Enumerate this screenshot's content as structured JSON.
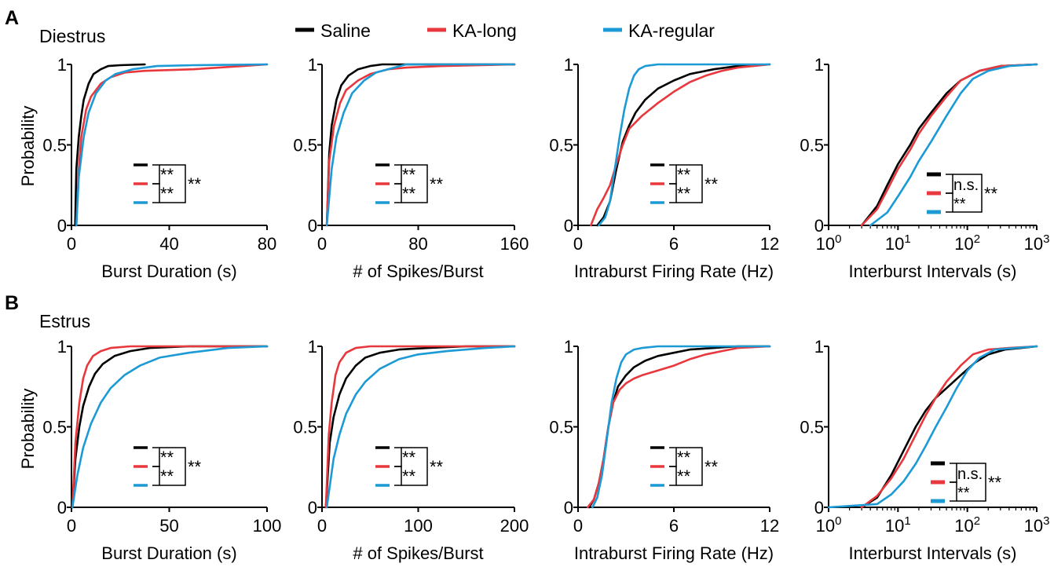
{
  "panels": [
    {
      "letter": "A",
      "title": "Diestrus"
    },
    {
      "letter": "B",
      "title": "Estrus"
    }
  ],
  "legend": [
    {
      "name": "Saline",
      "color": "#000000"
    },
    {
      "name": "KA-long",
      "color": "#e8383d"
    },
    {
      "name": "KA-regular",
      "color": "#1b9ad6"
    }
  ],
  "ylabel": "Probability",
  "y_ticks": [
    "0",
    "0.5",
    "1"
  ],
  "chart_data": [
    {
      "type": "line",
      "row": "Diestrus",
      "xlabel": "Burst Duration (s)",
      "xscale": "linear",
      "xlim": [
        0,
        80
      ],
      "xticks": [
        "0",
        "40",
        "80"
      ],
      "ylim": [
        0,
        1
      ],
      "series": [
        {
          "name": "Saline",
          "x": [
            1.5,
            2,
            3,
            4,
            5,
            7,
            9,
            12,
            15,
            20,
            30
          ],
          "y": [
            0,
            0.35,
            0.55,
            0.68,
            0.78,
            0.88,
            0.94,
            0.97,
            0.99,
            0.995,
            1
          ]
        },
        {
          "name": "KA-long",
          "x": [
            2,
            3,
            4,
            6,
            8,
            12,
            16,
            22,
            30,
            50,
            70,
            80
          ],
          "y": [
            0,
            0.35,
            0.55,
            0.72,
            0.8,
            0.88,
            0.92,
            0.95,
            0.96,
            0.97,
            0.99,
            1
          ]
        },
        {
          "name": "KA-regular",
          "x": [
            2,
            3,
            5,
            7,
            10,
            14,
            18,
            25,
            35,
            50,
            80
          ],
          "y": [
            0,
            0.3,
            0.55,
            0.7,
            0.82,
            0.9,
            0.94,
            0.97,
            0.99,
            0.995,
            1
          ]
        }
      ],
      "annotation": {
        "pairs": [
          "**",
          "**"
        ],
        "outer": "**"
      }
    },
    {
      "type": "line",
      "row": "Diestrus",
      "xlabel": "# of Spikes/Burst",
      "xscale": "linear",
      "xlim": [
        0,
        160
      ],
      "xticks": [
        "0",
        "80",
        "160"
      ],
      "ylim": [
        0,
        1
      ],
      "series": [
        {
          "name": "Saline",
          "x": [
            4,
            6,
            8,
            12,
            16,
            22,
            30,
            40,
            50,
            160
          ],
          "y": [
            0,
            0.45,
            0.62,
            0.78,
            0.87,
            0.93,
            0.97,
            0.99,
            1,
            1
          ]
        },
        {
          "name": "KA-long",
          "x": [
            4,
            6,
            10,
            15,
            20,
            30,
            40,
            55,
            70,
            100,
            160
          ],
          "y": [
            0,
            0.4,
            0.62,
            0.76,
            0.84,
            0.9,
            0.94,
            0.97,
            0.98,
            0.99,
            1
          ]
        },
        {
          "name": "KA-regular",
          "x": [
            4,
            8,
            12,
            18,
            25,
            35,
            45,
            60,
            70,
            160
          ],
          "y": [
            0,
            0.35,
            0.55,
            0.7,
            0.82,
            0.9,
            0.95,
            0.98,
            1,
            1
          ]
        }
      ],
      "annotation": {
        "pairs": [
          "**",
          "**"
        ],
        "outer": "**"
      }
    },
    {
      "type": "line",
      "row": "Diestrus",
      "xlabel": "Intraburst Firing Rate (Hz)",
      "xscale": "linear",
      "xlim": [
        0,
        12
      ],
      "xticks": [
        "0",
        "6",
        "12"
      ],
      "ylim": [
        0,
        1
      ],
      "series": [
        {
          "name": "Saline",
          "x": [
            1.2,
            1.6,
            2,
            2.4,
            2.8,
            3.2,
            3.6,
            4.2,
            5,
            6,
            7,
            8.5,
            10,
            12
          ],
          "y": [
            0,
            0.05,
            0.15,
            0.35,
            0.52,
            0.62,
            0.7,
            0.78,
            0.85,
            0.9,
            0.94,
            0.97,
            0.99,
            1
          ]
        },
        {
          "name": "KA-long",
          "x": [
            0.8,
            1.2,
            1.6,
            2,
            2.4,
            2.8,
            3.2,
            4,
            5,
            6,
            7,
            8,
            9,
            10,
            12
          ],
          "y": [
            0,
            0.1,
            0.17,
            0.25,
            0.38,
            0.5,
            0.6,
            0.68,
            0.76,
            0.83,
            0.89,
            0.93,
            0.96,
            0.98,
            1
          ]
        },
        {
          "name": "KA-regular",
          "x": [
            1.3,
            1.7,
            2,
            2.3,
            2.6,
            2.9,
            3.2,
            3.5,
            3.8,
            4.2,
            5,
            6,
            12
          ],
          "y": [
            0,
            0.05,
            0.15,
            0.35,
            0.55,
            0.72,
            0.85,
            0.93,
            0.97,
            0.99,
            1,
            1,
            1
          ]
        }
      ],
      "annotation": {
        "pairs": [
          "**",
          "**"
        ],
        "outer": "**"
      }
    },
    {
      "type": "line",
      "row": "Diestrus",
      "xlabel": "Interburst Intervals (s)",
      "xscale": "log",
      "xlim": [
        1,
        1000
      ],
      "xticks": [
        "1",
        "10",
        "100",
        "1000"
      ],
      "ylim": [
        0,
        1
      ],
      "series": [
        {
          "name": "Saline",
          "x": [
            3,
            5,
            7,
            10,
            15,
            20,
            30,
            50,
            80,
            150,
            300,
            1000
          ],
          "y": [
            0,
            0.12,
            0.25,
            0.38,
            0.5,
            0.6,
            0.7,
            0.82,
            0.9,
            0.96,
            0.99,
            1
          ]
        },
        {
          "name": "KA-long",
          "x": [
            3,
            5,
            7,
            10,
            15,
            20,
            30,
            50,
            80,
            150,
            300,
            1000
          ],
          "y": [
            0,
            0.1,
            0.22,
            0.35,
            0.47,
            0.57,
            0.68,
            0.8,
            0.9,
            0.96,
            0.99,
            1
          ]
        },
        {
          "name": "KA-regular",
          "x": [
            4,
            7,
            10,
            15,
            20,
            30,
            50,
            80,
            120,
            200,
            400,
            1000
          ],
          "y": [
            0,
            0.08,
            0.18,
            0.3,
            0.4,
            0.52,
            0.68,
            0.82,
            0.91,
            0.96,
            0.99,
            1
          ]
        }
      ],
      "annotation": {
        "pairs": [
          "n.s.",
          "**"
        ],
        "outer": "**"
      }
    },
    {
      "type": "line",
      "row": "Estrus",
      "xlabel": "Burst Duration (s)",
      "xscale": "linear",
      "xlim": [
        0,
        100
      ],
      "xticks": [
        "0",
        "50",
        "100"
      ],
      "ylim": [
        0,
        1
      ],
      "series": [
        {
          "name": "Saline",
          "x": [
            0.5,
            2,
            4,
            6,
            9,
            12,
            16,
            22,
            30,
            40,
            60,
            100
          ],
          "y": [
            0,
            0.3,
            0.5,
            0.63,
            0.75,
            0.83,
            0.89,
            0.94,
            0.97,
            0.99,
            1,
            1
          ]
        },
        {
          "name": "KA-long",
          "x": [
            0.5,
            2,
            4,
            6,
            8,
            11,
            15,
            20,
            30,
            100
          ],
          "y": [
            0,
            0.4,
            0.65,
            0.8,
            0.88,
            0.94,
            0.97,
            0.99,
            1,
            1
          ]
        },
        {
          "name": "KA-regular",
          "x": [
            0.5,
            3,
            6,
            10,
            15,
            20,
            27,
            35,
            45,
            60,
            80,
            100
          ],
          "y": [
            0,
            0.2,
            0.37,
            0.52,
            0.65,
            0.74,
            0.82,
            0.88,
            0.93,
            0.96,
            0.99,
            1
          ]
        }
      ],
      "annotation": {
        "pairs": [
          "**",
          "**"
        ],
        "outer": "**"
      }
    },
    {
      "type": "line",
      "row": "Estrus",
      "xlabel": "# of Spikes/Burst",
      "xscale": "linear",
      "xlim": [
        0,
        200
      ],
      "xticks": [
        "0",
        "100",
        "200"
      ],
      "ylim": [
        0,
        1
      ],
      "series": [
        {
          "name": "Saline",
          "x": [
            4,
            8,
            12,
            18,
            25,
            35,
            45,
            60,
            80,
            110,
            150,
            200
          ],
          "y": [
            0,
            0.4,
            0.56,
            0.7,
            0.8,
            0.88,
            0.93,
            0.96,
            0.98,
            0.99,
            1,
            1
          ]
        },
        {
          "name": "KA-long",
          "x": [
            4,
            7,
            10,
            14,
            18,
            25,
            35,
            50,
            200
          ],
          "y": [
            0,
            0.45,
            0.65,
            0.82,
            0.9,
            0.96,
            0.99,
            1,
            1
          ]
        },
        {
          "name": "KA-regular",
          "x": [
            5,
            12,
            18,
            25,
            35,
            45,
            60,
            80,
            100,
            130,
            170,
            200
          ],
          "y": [
            0,
            0.3,
            0.45,
            0.58,
            0.7,
            0.78,
            0.86,
            0.92,
            0.95,
            0.97,
            0.99,
            1
          ]
        }
      ],
      "annotation": {
        "pairs": [
          "**",
          "**"
        ],
        "outer": "**"
      }
    },
    {
      "type": "line",
      "row": "Estrus",
      "xlabel": "Intraburst Firing Rate (Hz)",
      "xscale": "linear",
      "xlim": [
        0,
        12
      ],
      "xticks": [
        "0",
        "6",
        "12"
      ],
      "ylim": [
        0,
        1
      ],
      "series": [
        {
          "name": "Saline",
          "x": [
            0.7,
            1,
            1.3,
            1.6,
            1.9,
            2.2,
            2.5,
            3,
            3.5,
            4.2,
            5,
            6,
            7,
            8.5,
            10,
            12
          ],
          "y": [
            0,
            0.05,
            0.15,
            0.3,
            0.5,
            0.65,
            0.75,
            0.82,
            0.87,
            0.91,
            0.94,
            0.96,
            0.98,
            0.99,
            1,
            1
          ]
        },
        {
          "name": "KA-long",
          "x": [
            0.6,
            1,
            1.3,
            1.6,
            1.9,
            2.2,
            2.6,
            3,
            3.5,
            4,
            5,
            6,
            7,
            8,
            9,
            10,
            12
          ],
          "y": [
            0,
            0.05,
            0.15,
            0.3,
            0.5,
            0.65,
            0.73,
            0.77,
            0.8,
            0.82,
            0.85,
            0.88,
            0.92,
            0.95,
            0.97,
            0.99,
            1
          ]
        },
        {
          "name": "KA-regular",
          "x": [
            0.9,
            1.2,
            1.5,
            1.8,
            2.1,
            2.4,
            2.7,
            3,
            3.5,
            4,
            5,
            12
          ],
          "y": [
            0,
            0.06,
            0.2,
            0.42,
            0.65,
            0.8,
            0.9,
            0.95,
            0.98,
            0.99,
            1,
            1
          ]
        }
      ],
      "annotation": {
        "pairs": [
          "**",
          "**"
        ],
        "outer": "**"
      }
    },
    {
      "type": "line",
      "row": "Estrus",
      "xlabel": "Interburst Intervals (s)",
      "xscale": "log",
      "xlim": [
        1,
        1000
      ],
      "xticks": [
        "1",
        "10",
        "100",
        "1000"
      ],
      "ylim": [
        0,
        1
      ],
      "series": [
        {
          "name": "Saline",
          "x": [
            3,
            5,
            8,
            12,
            18,
            25,
            35,
            50,
            80,
            130,
            200,
            350,
            600,
            1000
          ],
          "y": [
            0,
            0.06,
            0.2,
            0.35,
            0.5,
            0.6,
            0.68,
            0.74,
            0.82,
            0.9,
            0.95,
            0.98,
            0.99,
            1
          ]
        },
        {
          "name": "KA-long",
          "x": [
            3,
            5,
            8,
            12,
            18,
            25,
            35,
            50,
            80,
            120,
            200,
            400,
            1000
          ],
          "y": [
            0,
            0.07,
            0.18,
            0.3,
            0.45,
            0.57,
            0.68,
            0.78,
            0.88,
            0.95,
            0.98,
            0.99,
            1
          ]
        },
        {
          "name": "KA-regular",
          "x": [
            1,
            5,
            8,
            12,
            18,
            25,
            35,
            50,
            70,
            100,
            150,
            250,
            500,
            1000
          ],
          "y": [
            0,
            0.02,
            0.08,
            0.16,
            0.27,
            0.38,
            0.5,
            0.62,
            0.74,
            0.85,
            0.93,
            0.98,
            0.99,
            1
          ]
        }
      ],
      "annotation": {
        "pairs": [
          "n.s.",
          "**"
        ],
        "outer": "**"
      }
    }
  ]
}
